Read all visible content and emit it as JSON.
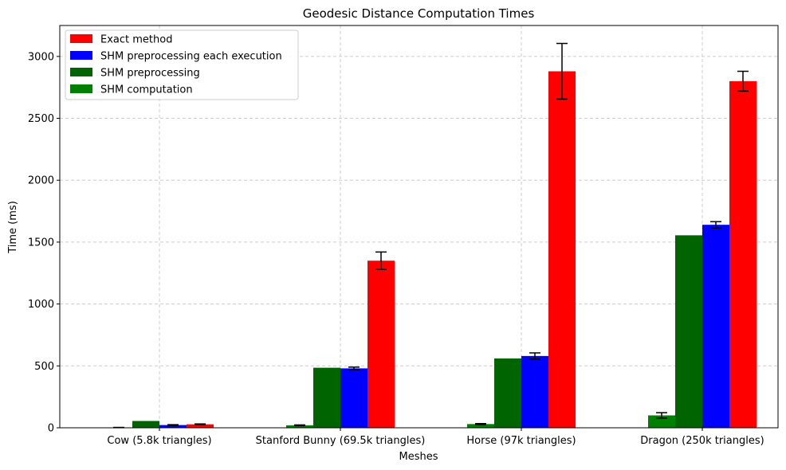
{
  "chart_data": {
    "type": "bar",
    "title": "Geodesic Distance Computation Times",
    "xlabel": "Meshes",
    "ylabel": "Time (ms)",
    "ylim": [
      0,
      3250
    ],
    "yticks": [
      0,
      500,
      1000,
      1500,
      2000,
      2500,
      3000
    ],
    "categories": [
      "Cow (5.8k triangles)",
      "Stanford Bunny (69.5k triangles)",
      "Horse (97k triangles)",
      "Dragon (250k triangles)"
    ],
    "grid": true,
    "legend_position": "top-left",
    "legend_order": [
      3,
      2,
      1,
      0
    ],
    "series": [
      {
        "name": "SHM computation",
        "color": "#008000",
        "values": [
          2,
          20,
          30,
          100
        ],
        "errors": [
          1,
          3,
          4,
          22
        ]
      },
      {
        "name": "SHM preprocessing",
        "color": "#006400",
        "values": [
          55,
          485,
          560,
          1555
        ],
        "errors": [
          0,
          0,
          0,
          0
        ]
      },
      {
        "name": "SHM preprocessing each execution",
        "color": "#0000ff",
        "values": [
          22,
          480,
          580,
          1640
        ],
        "errors": [
          3,
          10,
          25,
          25
        ]
      },
      {
        "name": "Exact method",
        "color": "#ff0000",
        "values": [
          28,
          1350,
          2880,
          2800
        ],
        "errors": [
          3,
          70,
          225,
          80
        ]
      }
    ]
  }
}
